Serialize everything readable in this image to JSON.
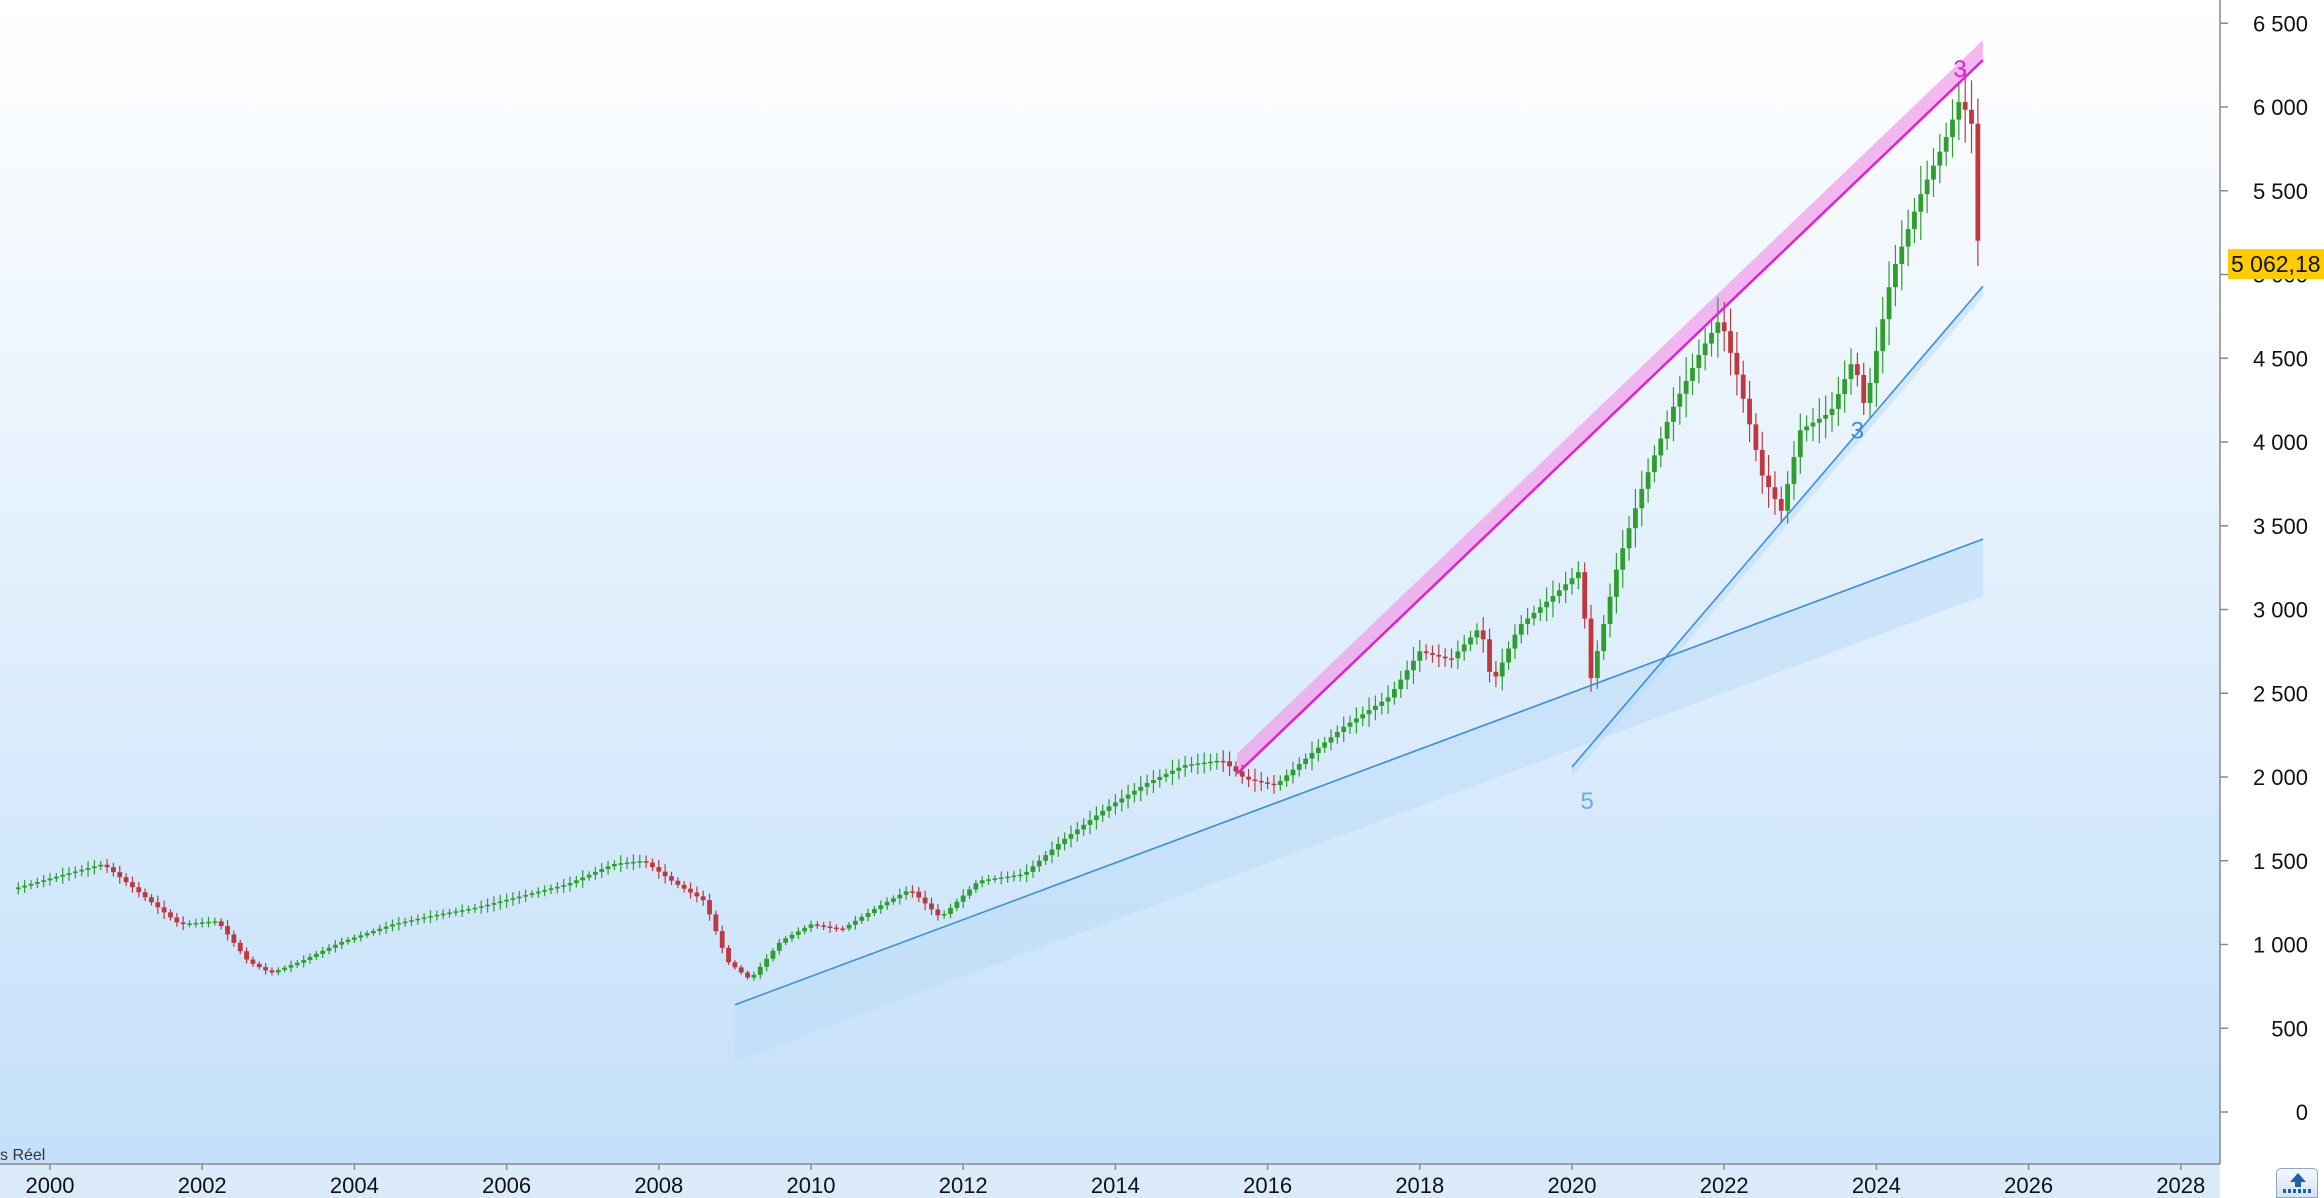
{
  "chart_data": {
    "type": "candlestick",
    "title": "",
    "xlabel": "",
    "ylabel": "",
    "note": "s Réel",
    "last_price_label": "5 062,18",
    "last_price": 5062.18,
    "x_ticks": [
      "2000",
      "2002",
      "2004",
      "2006",
      "2008",
      "2010",
      "2012",
      "2014",
      "2016",
      "2018",
      "2020",
      "2022",
      "2024",
      "2026",
      "2028"
    ],
    "y_ticks": [
      "0",
      "500",
      "1 000",
      "1 500",
      "2 000",
      "2 500",
      "3 000",
      "3 500",
      "4 000",
      "4 500",
      "5 000",
      "5 500",
      "6 000",
      "6 500"
    ],
    "xlim": [
      1999.4,
      2028.6
    ],
    "ylim": [
      -250,
      6650
    ],
    "grid": false,
    "colors": {
      "up": "#2e9e2e",
      "down": "#c0383f",
      "channel_top": "#e020d0",
      "channel_top_fill": "#f0a0ea",
      "trendline": "#3a8ee0",
      "trendline_fill": "#bcdcf8",
      "price_tag": "#ffcc00"
    },
    "price_path": [
      [
        1999.5,
        1330
      ],
      [
        2000.2,
        1420
      ],
      [
        2000.7,
        1480
      ],
      [
        2001.2,
        1300
      ],
      [
        2001.7,
        1120
      ],
      [
        2002.2,
        1140
      ],
      [
        2002.6,
        900
      ],
      [
        2002.9,
        830
      ],
      [
        2003.3,
        900
      ],
      [
        2003.8,
        1010
      ],
      [
        2004.5,
        1120
      ],
      [
        2005.0,
        1170
      ],
      [
        2005.6,
        1220
      ],
      [
        2006.2,
        1290
      ],
      [
        2006.8,
        1360
      ],
      [
        2007.4,
        1480
      ],
      [
        2007.8,
        1500
      ],
      [
        2008.2,
        1370
      ],
      [
        2008.6,
        1260
      ],
      [
        2008.9,
        900
      ],
      [
        2009.2,
        790
      ],
      [
        2009.6,
        1020
      ],
      [
        2010.0,
        1120
      ],
      [
        2010.4,
        1090
      ],
      [
        2010.9,
        1230
      ],
      [
        2011.3,
        1330
      ],
      [
        2011.7,
        1160
      ],
      [
        2012.2,
        1380
      ],
      [
        2012.8,
        1420
      ],
      [
        2013.3,
        1620
      ],
      [
        2013.9,
        1820
      ],
      [
        2014.4,
        1960
      ],
      [
        2014.9,
        2070
      ],
      [
        2015.4,
        2100
      ],
      [
        2015.7,
        1990
      ],
      [
        2016.1,
        1950
      ],
      [
        2016.6,
        2150
      ],
      [
        2017.0,
        2300
      ],
      [
        2017.6,
        2480
      ],
      [
        2018.0,
        2750
      ],
      [
        2018.4,
        2700
      ],
      [
        2018.8,
        2900
      ],
      [
        2018.95,
        2550
      ],
      [
        2019.3,
        2900
      ],
      [
        2019.8,
        3100
      ],
      [
        2020.1,
        3230
      ],
      [
        2020.25,
        2590
      ],
      [
        2020.6,
        3270
      ],
      [
        2020.9,
        3700
      ],
      [
        2021.3,
        4180
      ],
      [
        2021.7,
        4550
      ],
      [
        2021.95,
        4740
      ],
      [
        2022.2,
        4350
      ],
      [
        2022.5,
        3800
      ],
      [
        2022.75,
        3590
      ],
      [
        2023.0,
        4070
      ],
      [
        2023.4,
        4180
      ],
      [
        2023.7,
        4500
      ],
      [
        2023.85,
        4200
      ],
      [
        2024.2,
        5000
      ],
      [
        2024.6,
        5500
      ],
      [
        2024.9,
        5800
      ],
      [
        2025.1,
        6050
      ],
      [
        2025.25,
        5900
      ],
      [
        2025.35,
        5062.18
      ]
    ],
    "trendlines": [
      {
        "name": "upper-channel",
        "from": [
          2015.6,
          2020
        ],
        "to": [
          2025.4,
          6280
        ],
        "band_above": 120
      },
      {
        "name": "support-long",
        "from": [
          2009.0,
          640
        ],
        "to": [
          2025.4,
          3420
        ],
        "band_below": 340
      },
      {
        "name": "support-short",
        "from": [
          2020.0,
          2060
        ],
        "to": [
          2025.4,
          4930
        ],
        "band_below": 60
      }
    ],
    "wave_labels": [
      {
        "text": "3",
        "x": 2025.1,
        "y": 6180,
        "color": "#e020d0"
      },
      {
        "text": "3",
        "x": 2023.75,
        "y": 4020,
        "color": "#3a8ee0"
      },
      {
        "text": "5",
        "x": 2020.2,
        "y": 1810,
        "color": "#6aaee8"
      }
    ]
  }
}
